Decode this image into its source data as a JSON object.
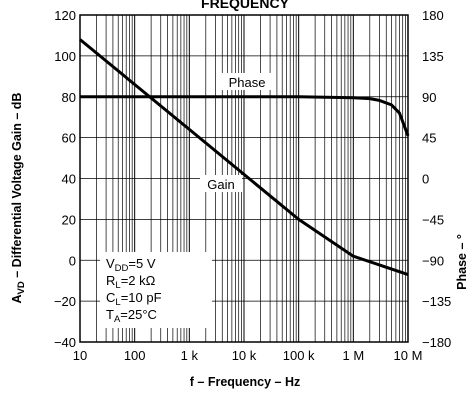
{
  "chart_data": {
    "type": "line",
    "title": "FREQUENCY",
    "xlabel": "f – Frequency – Hz",
    "ylabel_prefix": "A",
    "ylabel_sub": "VD",
    "ylabel_rest": " – Differential Voltage Gain – dB",
    "y2label": "Phase – °",
    "xscale": "log",
    "xlim": [
      10,
      10000000
    ],
    "ylim": [
      -40,
      120
    ],
    "y2lim": [
      -180,
      180
    ],
    "grid": true,
    "x_ticks": [
      {
        "value": 10,
        "label": "10"
      },
      {
        "value": 100,
        "label": "100"
      },
      {
        "value": 1000,
        "label": "1 k"
      },
      {
        "value": 10000,
        "label": "10 k"
      },
      {
        "value": 100000,
        "label": "100 k"
      },
      {
        "value": 1000000,
        "label": "1 M"
      },
      {
        "value": 10000000,
        "label": "10 M"
      }
    ],
    "y_ticks": [
      {
        "value": 120,
        "label": "120"
      },
      {
        "value": 100,
        "label": "100"
      },
      {
        "value": 80,
        "label": "80"
      },
      {
        "value": 60,
        "label": "60"
      },
      {
        "value": 40,
        "label": "40"
      },
      {
        "value": 20,
        "label": "20"
      },
      {
        "value": 0,
        "label": "0"
      },
      {
        "value": -20,
        "label": "−20"
      },
      {
        "value": -40,
        "label": "−40"
      }
    ],
    "y2_ticks": [
      {
        "value": 180,
        "label": "180"
      },
      {
        "value": 135,
        "label": "135"
      },
      {
        "value": 90,
        "label": "90"
      },
      {
        "value": 45,
        "label": "45"
      },
      {
        "value": 0,
        "label": "0"
      },
      {
        "value": -45,
        "label": "−45"
      },
      {
        "value": -90,
        "label": "−90"
      },
      {
        "value": -135,
        "label": "−135"
      },
      {
        "value": -180,
        "label": "−180"
      }
    ],
    "series": [
      {
        "name": "Gain",
        "axis": "left",
        "x": [
          10,
          100,
          1000,
          10000,
          100000,
          1000000,
          10000000
        ],
        "y": [
          108,
          86,
          64,
          42,
          20,
          2,
          -7
        ]
      },
      {
        "name": "Phase",
        "axis": "right",
        "x": [
          10,
          100,
          1000,
          10000,
          100000,
          1000000,
          2000000,
          3000000,
          5000000,
          7000000,
          10000000
        ],
        "y": [
          90,
          90,
          90,
          90,
          90,
          89,
          88,
          86,
          81,
          72,
          47
        ]
      }
    ],
    "conditions": [
      {
        "main": "V",
        "sub": "DD",
        "rest": "=5 V"
      },
      {
        "main": "R",
        "sub": "L",
        "rest": "=2 kΩ"
      },
      {
        "main": "C",
        "sub": "L",
        "rest": "=10 pF"
      },
      {
        "main": "T",
        "sub": "A",
        "rest": "=25°C"
      }
    ]
  }
}
